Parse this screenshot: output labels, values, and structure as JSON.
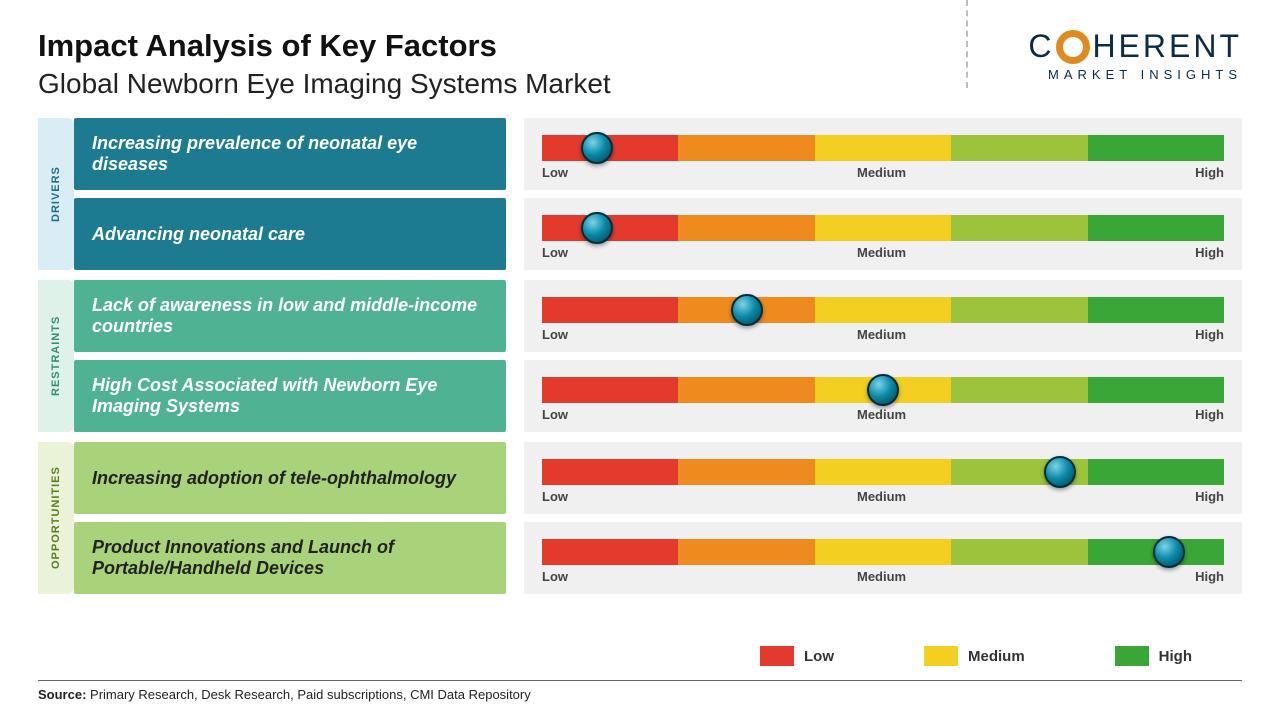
{
  "title": "Impact Analysis of Key Factors",
  "subtitle": "Global Newborn Eye Imaging Systems Market",
  "logo": {
    "brand_main": "HERENT",
    "brand_prefix": "C",
    "brand_sub": "MARKET INSIGHTS",
    "accent_color": "#e08a1e",
    "text_color": "#0a2b4a"
  },
  "gauge": {
    "segments": [
      "#e23b2e",
      "#ef8a1f",
      "#f3cf22",
      "#9cc33b",
      "#3aa637"
    ],
    "labels": {
      "low": "Low",
      "medium": "Medium",
      "high": "High"
    },
    "track_bg": "#f0f0f0"
  },
  "categories": [
    {
      "id": "drivers",
      "label": "DRIVERS",
      "tab_bg": "#d8edf5",
      "tab_text": "#1d6e8e",
      "box_bg": "#1d7b91",
      "box_text_dark": false,
      "rows": [
        {
          "text": "Increasing prevalence of neonatal eye diseases",
          "knob_pct": 8
        },
        {
          "text": "Advancing neonatal care",
          "knob_pct": 8
        }
      ]
    },
    {
      "id": "restraints",
      "label": "RESTRAINTS",
      "tab_bg": "#dff2ea",
      "tab_text": "#2f8f72",
      "box_bg": "#4fb393",
      "box_text_dark": false,
      "rows": [
        {
          "text": "Lack of awareness in low and middle-income countries",
          "knob_pct": 30
        },
        {
          "text": "High Cost Associated with Newborn Eye Imaging Systems",
          "knob_pct": 50
        }
      ]
    },
    {
      "id": "opportunities",
      "label": "OPPORTUNITIES",
      "tab_bg": "#eaf3d8",
      "tab_text": "#5a7d1f",
      "box_bg": "#a9d37a",
      "box_text_dark": true,
      "rows": [
        {
          "text": "Increasing adoption of tele-ophthalmology",
          "knob_pct": 76
        },
        {
          "text": "Product Innovations and Launch of Portable/Handheld Devices",
          "knob_pct": 92
        }
      ]
    }
  ],
  "legend": [
    {
      "label": "Low",
      "color": "#e23b2e"
    },
    {
      "label": "Medium",
      "color": "#f3cf22"
    },
    {
      "label": "High",
      "color": "#3aa637"
    }
  ],
  "source": {
    "label": "Source:",
    "text": "Primary Research, Desk Research, Paid subscriptions, CMI Data Repository"
  }
}
